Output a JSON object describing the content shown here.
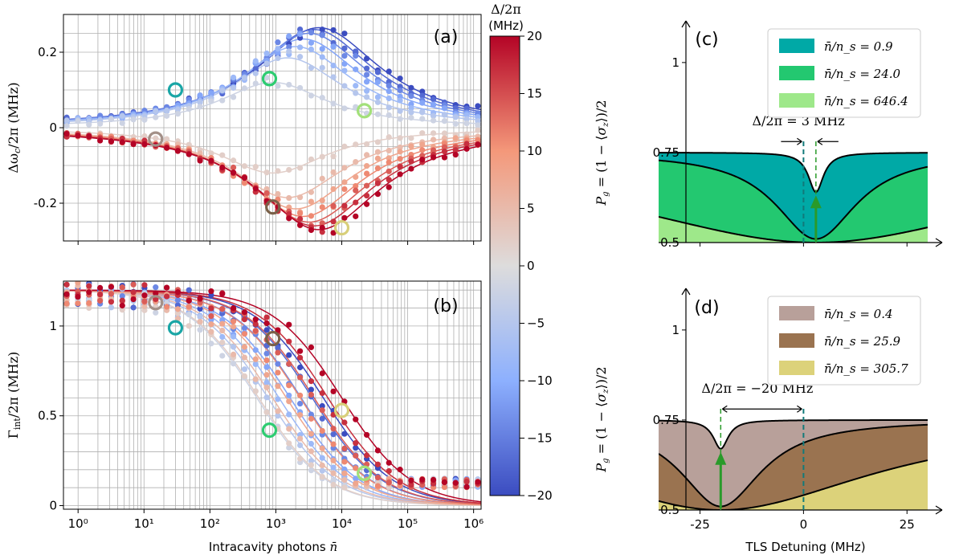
{
  "chart_data": [
    {
      "panel": "(a)",
      "type": "scatter",
      "xlabel": "",
      "ylabel": "Δω_c/2π (MHz)",
      "xscale": "log",
      "xlim": [
        0.6,
        1300000
      ],
      "ylim": [
        -0.3,
        0.3
      ],
      "yticks": [
        0.2,
        0,
        -0.2
      ],
      "ytick_labels": [
        "0.2",
        "0",
        "-0.2"
      ],
      "grid": true,
      "colormap": "coolwarm",
      "series_curves": [
        {
          "delta": -20,
          "peak": 0.265,
          "center": 4500,
          "width": 1.15
        },
        {
          "delta": -17,
          "peak": 0.26,
          "center": 3800,
          "width": 1.12
        },
        {
          "delta": -14,
          "peak": 0.25,
          "center": 3200,
          "width": 1.1
        },
        {
          "delta": -11,
          "peak": 0.235,
          "center": 2600,
          "width": 1.08
        },
        {
          "delta": -8,
          "peak": 0.215,
          "center": 2000,
          "width": 1.06
        },
        {
          "delta": -5,
          "peak": 0.185,
          "center": 1500,
          "width": 1.04
        },
        {
          "delta": -2,
          "peak": 0.12,
          "center": 900,
          "width": 1.0
        },
        {
          "delta": 2,
          "peak": -0.12,
          "center": 900,
          "width": 1.0
        },
        {
          "delta": 5,
          "peak": -0.185,
          "center": 1500,
          "width": 1.04
        },
        {
          "delta": 8,
          "peak": -0.215,
          "center": 2000,
          "width": 1.06
        },
        {
          "delta": 11,
          "peak": -0.235,
          "center": 2600,
          "width": 1.08
        },
        {
          "delta": 14,
          "peak": -0.25,
          "center": 3200,
          "width": 1.1
        },
        {
          "delta": 17,
          "peak": -0.26,
          "center": 3800,
          "width": 1.12
        },
        {
          "delta": 20,
          "peak": -0.27,
          "center": 4500,
          "width": 1.15
        }
      ],
      "highlight_markers": [
        {
          "x": 30,
          "y": 0.1,
          "color": "#1aa6a6"
        },
        {
          "x": 800,
          "y": 0.13,
          "color": "#2ecc71"
        },
        {
          "x": 22000,
          "y": 0.045,
          "color": "#a3e07a"
        },
        {
          "x": 15,
          "y": -0.03,
          "color": "#a39088"
        },
        {
          "x": 900,
          "y": -0.21,
          "color": "#7a6048"
        },
        {
          "x": 10000,
          "y": -0.265,
          "color": "#d8cf7a"
        }
      ]
    },
    {
      "panel": "(b)",
      "type": "scatter",
      "xlabel": "Intracavity photons n̄",
      "ylabel": "Γ_int/2π (MHz)",
      "xscale": "log",
      "xlim": [
        0.6,
        1300000
      ],
      "ylim": [
        -0.02,
        1.25
      ],
      "yticks": [
        1,
        0.5,
        0
      ],
      "ytick_labels": [
        "1",
        "0.5",
        "0"
      ],
      "xticks": [
        1,
        10,
        100,
        1000,
        10000,
        100000,
        1000000
      ],
      "xtick_labels": [
        "10⁰",
        "10¹",
        "10²",
        "10³",
        "10⁴",
        "10⁵",
        "10⁶"
      ],
      "grid": true,
      "highlight_markers": [
        {
          "x": 30,
          "y": 0.99,
          "color": "#1aa6a6"
        },
        {
          "x": 800,
          "y": 0.42,
          "color": "#2ecc71"
        },
        {
          "x": 22000,
          "y": 0.18,
          "color": "#a3e07a"
        },
        {
          "x": 15,
          "y": 1.13,
          "color": "#a39088"
        },
        {
          "x": 900,
          "y": 0.93,
          "color": "#7a6048"
        },
        {
          "x": 10000,
          "y": 0.53,
          "color": "#d8cf7a"
        }
      ]
    },
    {
      "panel": "colorbar",
      "label": "Δ/2π (MHz)",
      "range": [
        -20,
        20
      ],
      "ticks": [
        20,
        15,
        10,
        5,
        0,
        -5,
        -10,
        -15,
        -20
      ],
      "tick_labels": [
        "20",
        "15",
        "10",
        "5",
        "0",
        "−5",
        "−10",
        "−15",
        "−20"
      ]
    },
    {
      "panel": "(c)",
      "type": "area",
      "ylabel": "P_g = (1 − ⟨σ_z⟩)/2",
      "xlim": [
        -35,
        30
      ],
      "ylim": [
        0.5,
        1.08
      ],
      "yticks": [
        0.5,
        0.75,
        1
      ],
      "ytick_labels": [
        "0.5",
        "0.75",
        "1"
      ],
      "dip_center": 3,
      "annotation": "Δ/2π = 3 MHz",
      "series": [
        {
          "name": "n̄/n_s = 0.9",
          "color": "#00a9a6",
          "depth": 0.11,
          "width": 2.2
        },
        {
          "name": "n̄/n_s = 24.0",
          "color": "#23c870",
          "depth": 0.24,
          "width": 12
        },
        {
          "name": "n̄/n_s = 646.4",
          "color": "#9ee88a",
          "depth": 0.25,
          "width": 60
        }
      ]
    },
    {
      "panel": "(d)",
      "type": "area",
      "ylabel": "P_g = (1 − ⟨σ_z⟩)/2",
      "xlabel": "TLS Detuning (MHz)",
      "xlim": [
        -35,
        30
      ],
      "ylim": [
        0.5,
        1.08
      ],
      "yticks": [
        0.5,
        0.75,
        1
      ],
      "ytick_labels": [
        "0.5",
        "0.75",
        "1"
      ],
      "xticks": [
        -25,
        0,
        25
      ],
      "xtick_labels": [
        "-25",
        "0",
        "25"
      ],
      "dip_center": -20,
      "annotation": "Δ/2π = −20 MHz",
      "series": [
        {
          "name": "n̄/n_s = 0.4",
          "color": "#b8a09a",
          "depth": 0.08,
          "width": 2.2
        },
        {
          "name": "n̄/n_s = 25.9",
          "color": "#9a7350",
          "depth": 0.24,
          "width": 12
        },
        {
          "name": "n̄/n_s = 305.7",
          "color": "#dcd27a",
          "depth": 0.25,
          "width": 45
        }
      ]
    }
  ]
}
